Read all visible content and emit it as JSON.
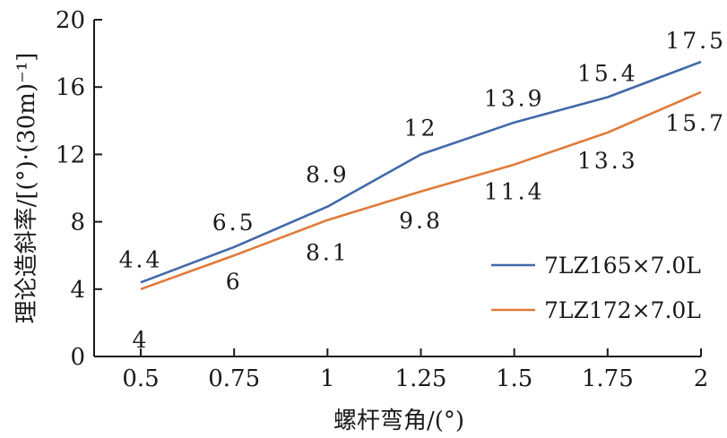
{
  "chart_data": {
    "type": "line",
    "xlabel": "螺杆弯角/(°)",
    "ylabel": "理论造斜率/[(°)·(30m)⁻¹]",
    "categories": [
      "0.5",
      "0.75",
      "1",
      "1.25",
      "1.5",
      "1.75",
      "2"
    ],
    "x": [
      0.5,
      0.75,
      1,
      1.25,
      1.5,
      1.75,
      2
    ],
    "ylim": [
      0,
      20
    ],
    "yticks": [
      "0",
      "4",
      "8",
      "12",
      "16",
      "20"
    ],
    "grid": false,
    "legend_position": "bottom-right",
    "series": [
      {
        "name": "7LZ165×7.0L",
        "color": "#4169a8",
        "values": [
          4.4,
          6.5,
          8.9,
          12,
          13.9,
          15.4,
          17.5
        ],
        "labels": [
          "4.4",
          "6.5",
          "8.9",
          "12",
          "13.9",
          "15.4",
          "17.5"
        ]
      },
      {
        "name": "7LZ172×7.0L",
        "color": "#e07b3a",
        "values": [
          4,
          6,
          8.1,
          9.8,
          11.4,
          13.3,
          15.7
        ],
        "labels": [
          "4",
          "6",
          "8.1",
          "9.8",
          "11.4",
          "13.3",
          "15.7"
        ]
      }
    ]
  }
}
